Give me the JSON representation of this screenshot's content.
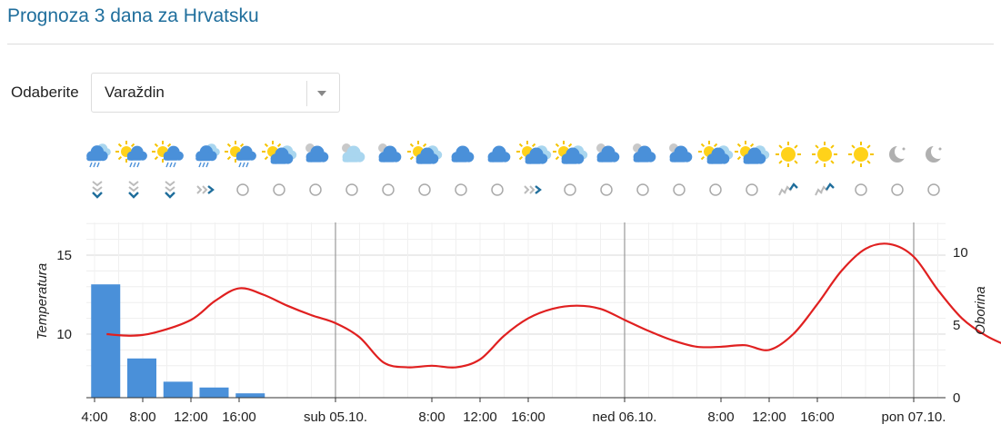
{
  "page": {
    "title": "Prognoza 3 dana za Hrvatsku"
  },
  "selector": {
    "label": "Odaberite",
    "value": "Varaždin"
  },
  "weather_icons": [
    "cloud-rain-icon",
    "sun-cloud-rain-icon",
    "sun-cloud-rain-icon",
    "cloud-rain-icon",
    "sun-cloud-rain-icon",
    "sun-cloud-icon",
    "cloud-icon",
    "cloud-icon",
    "cloud-icon",
    "sun-cloud-icon",
    "cloud-icon",
    "cloud-icon",
    "sun-cloud-icon",
    "sun-cloud-icon",
    "cloud-icon",
    "cloud-icon",
    "cloud-icon",
    "sun-cloud-icon",
    "sun-cloud-icon",
    "sun-icon",
    "sun-icon",
    "sun-icon",
    "moon-icon",
    "moon-icon"
  ],
  "wind_icons": [
    "wind-north-icon",
    "wind-north-icon",
    "wind-north-icon",
    "wind-west-icon",
    "calm-icon",
    "calm-icon",
    "calm-icon",
    "calm-icon",
    "calm-icon",
    "calm-icon",
    "calm-icon",
    "calm-icon",
    "wind-west-icon",
    "calm-icon",
    "calm-icon",
    "calm-icon",
    "calm-icon",
    "calm-icon",
    "calm-icon",
    "wind-southwest-icon",
    "wind-southwest-icon",
    "calm-icon",
    "calm-icon",
    "calm-icon"
  ],
  "chart_data": {
    "type": "line+bar",
    "left_axis": {
      "label": "Temperatura",
      "ticks": [
        10,
        15
      ]
    },
    "right_axis": {
      "label": "Oborina",
      "ticks": [
        0,
        5,
        10
      ]
    },
    "x_tick_labels": [
      "4:00",
      "8:00",
      "12:00",
      "16:00",
      "sub 05.10.",
      "8:00",
      "12:00",
      "16:00",
      "ned 06.10.",
      "8:00",
      "12:00",
      "16:00",
      "pon 07.10."
    ],
    "x_tick_hours": [
      4,
      8,
      12,
      16,
      24,
      32,
      36,
      40,
      48,
      56,
      60,
      64,
      72
    ],
    "day_boundaries": [
      24,
      48,
      72
    ],
    "series": [
      {
        "kind": "line",
        "color": "#e02020",
        "axis": "left",
        "points": [
          [
            5,
            10.0
          ],
          [
            7,
            9.9
          ],
          [
            9,
            10.1
          ],
          [
            12,
            10.9
          ],
          [
            14,
            12.1
          ],
          [
            16,
            12.9
          ],
          [
            18,
            12.5
          ],
          [
            20,
            11.8
          ],
          [
            22,
            11.2
          ],
          [
            24,
            10.7
          ],
          [
            26,
            9.8
          ],
          [
            28,
            8.2
          ],
          [
            30,
            7.9
          ],
          [
            32,
            8.0
          ],
          [
            34,
            7.9
          ],
          [
            36,
            8.4
          ],
          [
            38,
            9.9
          ],
          [
            40,
            11.0
          ],
          [
            42,
            11.6
          ],
          [
            44,
            11.8
          ],
          [
            46,
            11.6
          ],
          [
            48,
            10.9
          ],
          [
            50,
            10.2
          ],
          [
            52,
            9.6
          ],
          [
            54,
            9.2
          ],
          [
            56,
            9.2
          ],
          [
            58,
            9.3
          ],
          [
            60,
            9.0
          ],
          [
            62,
            10.0
          ],
          [
            64,
            11.9
          ],
          [
            66,
            14.0
          ],
          [
            68,
            15.4
          ],
          [
            70,
            15.7
          ],
          [
            72,
            14.9
          ],
          [
            74,
            12.8
          ],
          [
            76,
            11.0
          ],
          [
            78,
            9.9
          ],
          [
            80,
            9.2
          ],
          [
            82,
            8.7
          ],
          [
            83,
            8.4
          ]
        ]
      },
      {
        "kind": "bar",
        "color": "#4a90d9",
        "axis": "right",
        "points": [
          [
            5,
            7.8
          ],
          [
            8,
            2.7
          ],
          [
            11,
            1.1
          ],
          [
            14,
            0.7
          ],
          [
            17,
            0.3
          ]
        ]
      }
    ]
  }
}
